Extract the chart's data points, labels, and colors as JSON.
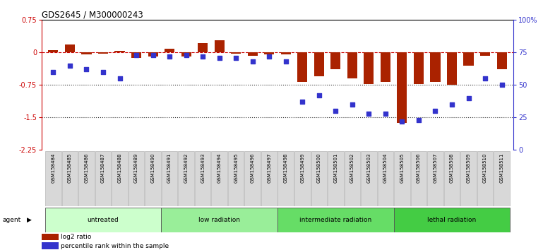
{
  "title": "GDS2645 / M300000243",
  "samples": [
    "GSM158484",
    "GSM158485",
    "GSM158486",
    "GSM158487",
    "GSM158488",
    "GSM158489",
    "GSM158490",
    "GSM158491",
    "GSM158492",
    "GSM158493",
    "GSM158494",
    "GSM158495",
    "GSM158496",
    "GSM158497",
    "GSM158498",
    "GSM158499",
    "GSM158500",
    "GSM158501",
    "GSM158502",
    "GSM158503",
    "GSM158504",
    "GSM158505",
    "GSM158506",
    "GSM158507",
    "GSM158508",
    "GSM158509",
    "GSM158510",
    "GSM158511"
  ],
  "log2_ratio": [
    0.05,
    0.18,
    -0.05,
    -0.02,
    0.04,
    -0.12,
    -0.1,
    0.08,
    -0.1,
    0.22,
    0.28,
    -0.03,
    -0.07,
    -0.05,
    -0.04,
    -0.68,
    -0.55,
    -0.38,
    -0.6,
    -0.72,
    -0.68,
    -1.62,
    -0.72,
    -0.68,
    -0.75,
    -0.3,
    -0.08,
    -0.38
  ],
  "percentile_rank": [
    60,
    65,
    62,
    60,
    55,
    73,
    73,
    72,
    73,
    72,
    71,
    71,
    68,
    72,
    68,
    37,
    42,
    30,
    35,
    28,
    28,
    22,
    23,
    30,
    35,
    40,
    55,
    50
  ],
  "bar_color": "#aa2200",
  "dot_color": "#3333cc",
  "ref_line_color": "#cc0000",
  "dotted_line_color": "#333333",
  "ylim_left": [
    -2.25,
    0.75
  ],
  "ylim_right": [
    0,
    100
  ],
  "yticks_left": [
    0.75,
    0.0,
    -0.75,
    -1.5,
    -2.25
  ],
  "yticks_right": [
    100,
    75,
    50,
    25,
    0
  ],
  "ytick_labels_left": [
    "0.75",
    "0",
    "-0.75",
    "-1.5",
    "-2.25"
  ],
  "ytick_labels_right": [
    "100%",
    "75",
    "50",
    "25",
    "0"
  ],
  "groups": [
    {
      "label": "untreated",
      "start": 0,
      "end": 7,
      "color": "#ccffcc"
    },
    {
      "label": "low radiation",
      "start": 7,
      "end": 14,
      "color": "#99ee99"
    },
    {
      "label": "intermediate radiation",
      "start": 14,
      "end": 21,
      "color": "#66dd66"
    },
    {
      "label": "lethal radiation",
      "start": 21,
      "end": 28,
      "color": "#44cc44"
    }
  ],
  "agent_label": "agent",
  "legend_items": [
    {
      "label": "log2 ratio",
      "color": "#aa2200"
    },
    {
      "label": "percentile rank within the sample",
      "color": "#3333cc"
    }
  ]
}
